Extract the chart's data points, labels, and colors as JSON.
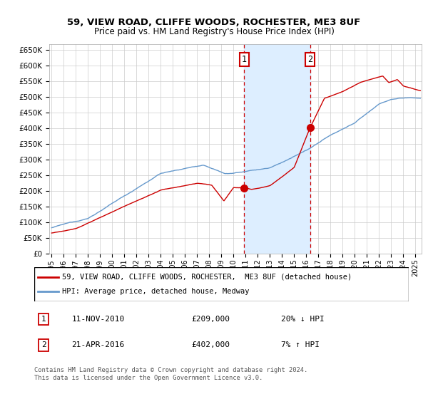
{
  "title": "59, VIEW ROAD, CLIFFE WOODS, ROCHESTER, ME3 8UF",
  "subtitle": "Price paid vs. HM Land Registry's House Price Index (HPI)",
  "ylim": [
    0,
    670000
  ],
  "yticks": [
    0,
    50000,
    100000,
    150000,
    200000,
    250000,
    300000,
    350000,
    400000,
    450000,
    500000,
    550000,
    600000,
    650000
  ],
  "xlim_start": 1994.8,
  "xlim_end": 2025.5,
  "t1": 2010.87,
  "t2": 2016.32,
  "price1": 209000,
  "price2": 402000,
  "shade_color": "#ddeeff",
  "dashed_color": "#cc0000",
  "property_color": "#cc0000",
  "hpi_color": "#6699cc",
  "legend_label1": "59, VIEW ROAD, CLIFFE WOODS, ROCHESTER,  ME3 8UF (detached house)",
  "legend_label2": "HPI: Average price, detached house, Medway",
  "note1_date": "11-NOV-2010",
  "note1_price": "£209,000",
  "note1_pct": "20% ↓ HPI",
  "note2_date": "21-APR-2016",
  "note2_price": "£402,000",
  "note2_pct": "7% ↑ HPI",
  "footer1": "Contains HM Land Registry data © Crown copyright and database right 2024.",
  "footer2": "This data is licensed under the Open Government Licence v3.0."
}
